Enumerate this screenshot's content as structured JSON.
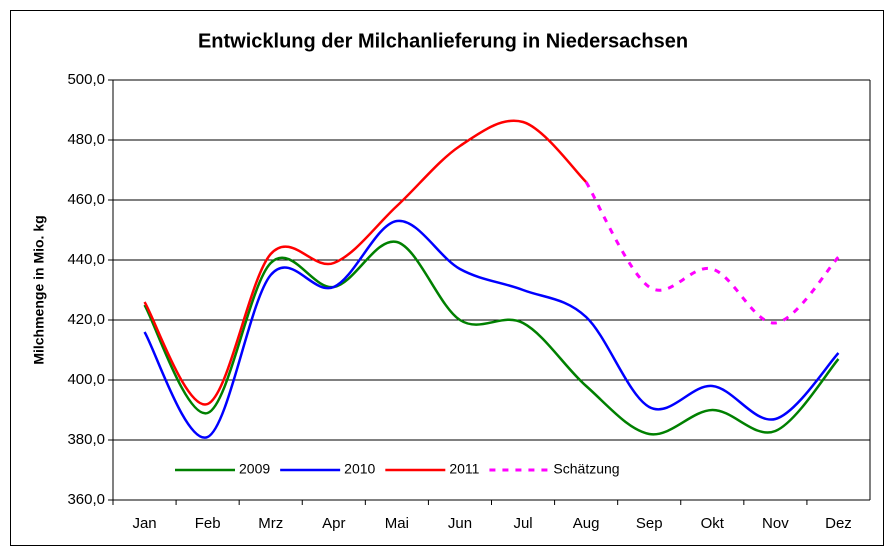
{
  "chart_data": {
    "type": "line",
    "title": "Entwicklung der Milchanlieferung in Niedersachsen",
    "y_label": "Milchmenge in Mio. kg",
    "categories": [
      "Jan",
      "Feb",
      "Mrz",
      "Apr",
      "Mai",
      "Jun",
      "Jul",
      "Aug",
      "Sep",
      "Okt",
      "Nov",
      "Dez"
    ],
    "series": [
      {
        "name": "2009",
        "color": "#008000",
        "dashed": false,
        "values": [
          425,
          389,
          439,
          431,
          446,
          420,
          419,
          398,
          382,
          390,
          383,
          407
        ]
      },
      {
        "name": "2010",
        "color": "#0000ff",
        "dashed": false,
        "values": [
          416,
          381,
          435,
          431,
          453,
          437,
          430,
          421,
          391,
          398,
          387,
          409
        ]
      },
      {
        "name": "2011",
        "color": "#ff0000",
        "dashed": false,
        "values": [
          426,
          392,
          442,
          439,
          458,
          478,
          486,
          466,
          null,
          null,
          null,
          null
        ]
      },
      {
        "name": "Schätzung",
        "color": "#ff00ff",
        "dashed": true,
        "values": [
          null,
          null,
          null,
          null,
          null,
          null,
          null,
          466,
          431,
          437,
          419,
          441
        ]
      }
    ],
    "ylim": [
      360,
      500
    ],
    "yticks": [
      {
        "value": 360,
        "label": "360,0"
      },
      {
        "value": 380,
        "label": "380,0"
      },
      {
        "value": 400,
        "label": "400,0"
      },
      {
        "value": 420,
        "label": "420,0"
      },
      {
        "value": 440,
        "label": "440,0"
      },
      {
        "value": 460,
        "label": "460,0"
      },
      {
        "value": 480,
        "label": "480,0"
      },
      {
        "value": 500,
        "label": "500,0"
      }
    ],
    "grid": true,
    "legend": "bottom-left"
  }
}
